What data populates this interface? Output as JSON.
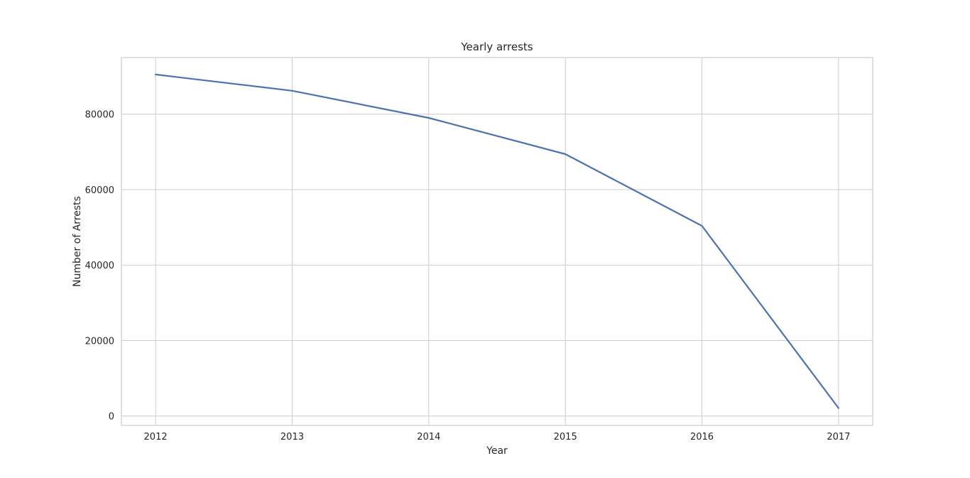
{
  "chart_data": {
    "type": "line",
    "title": "Yearly arrests",
    "xlabel": "Year",
    "ylabel": "Number of Arrests",
    "x": [
      2012,
      2013,
      2014,
      2015,
      2016,
      2017
    ],
    "x_tick_labels": [
      "2012",
      "2013",
      "2014",
      "2015",
      "2016",
      "2017"
    ],
    "y_ticks": [
      0,
      20000,
      40000,
      60000,
      80000
    ],
    "y_tick_labels": [
      "0",
      "20000",
      "40000",
      "60000",
      "80000"
    ],
    "xlim": [
      2011.75,
      2017.25
    ],
    "ylim": [
      -2500,
      95000
    ],
    "grid": true,
    "series": [
      {
        "values": [
          90500,
          86200,
          79000,
          69400,
          50400,
          2100
        ],
        "color": "#4c72b0"
      }
    ]
  }
}
